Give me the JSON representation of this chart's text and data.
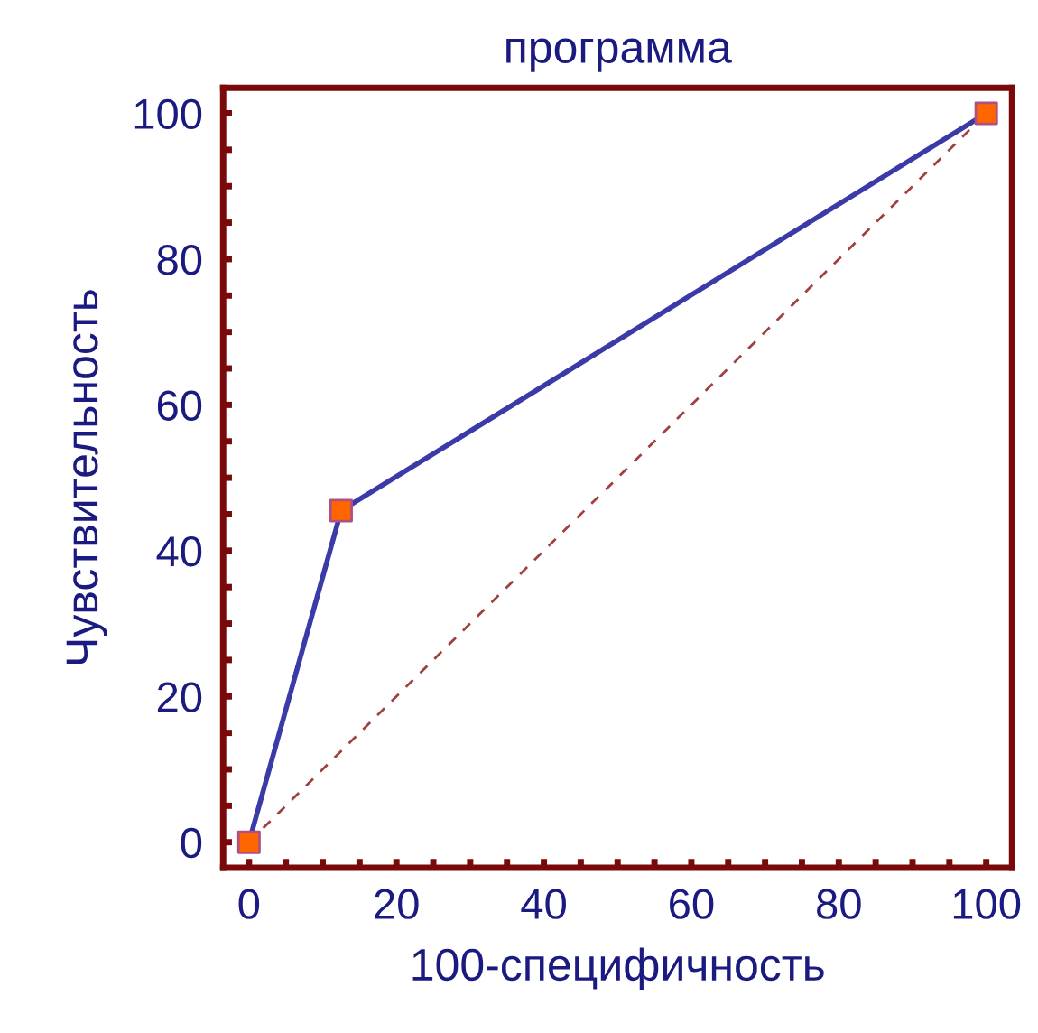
{
  "chart_data": {
    "type": "line",
    "title": "программа",
    "xlabel": "100-специфичность",
    "ylabel": "Чувствительность",
    "xlim": [
      -3.5,
      103.5
    ],
    "ylim": [
      -3.5,
      103.5
    ],
    "xticks": [
      0,
      {
        "value": 5,
        "label": null
      },
      {
        "value": 10,
        "label": null
      },
      {
        "value": 15,
        "label": null
      },
      20,
      {
        "value": 25,
        "label": null
      },
      {
        "value": 30,
        "label": null
      },
      {
        "value": 35,
        "label": null
      },
      40,
      {
        "value": 45,
        "label": null
      },
      {
        "value": 50,
        "label": null
      },
      {
        "value": 55,
        "label": null
      },
      60,
      {
        "value": 65,
        "label": null
      },
      {
        "value": 70,
        "label": null
      },
      {
        "value": 75,
        "label": null
      },
      80,
      {
        "value": 85,
        "label": null
      },
      {
        "value": 90,
        "label": null
      },
      {
        "value": 95,
        "label": null
      },
      100
    ],
    "yticks": [
      0,
      {
        "value": 5,
        "label": null
      },
      {
        "value": 10,
        "label": null
      },
      {
        "value": 15,
        "label": null
      },
      20,
      {
        "value": 25,
        "label": null
      },
      {
        "value": 30,
        "label": null
      },
      {
        "value": 35,
        "label": null
      },
      40,
      {
        "value": 45,
        "label": null
      },
      {
        "value": 50,
        "label": null
      },
      {
        "value": 55,
        "label": null
      },
      60,
      {
        "value": 65,
        "label": null
      },
      {
        "value": 70,
        "label": null
      },
      {
        "value": 75,
        "label": null
      },
      80,
      {
        "value": 85,
        "label": null
      },
      {
        "value": 90,
        "label": null
      },
      {
        "value": 95,
        "label": null
      },
      100
    ],
    "grid": false,
    "legend": false,
    "series": [
      {
        "x": [
          0,
          100
        ],
        "values": [
          0,
          100
        ],
        "color": "#a04040",
        "line_style": "dashed",
        "marker": "none"
      },
      {
        "x": [
          0,
          12.5,
          100
        ],
        "values": [
          0,
          45.5,
          100
        ],
        "color": "#3a3aa8",
        "colors": [
          "#ff6600",
          "#ff6600",
          "#ff6600"
        ],
        "line_style": "solid",
        "marker": "square"
      }
    ]
  }
}
